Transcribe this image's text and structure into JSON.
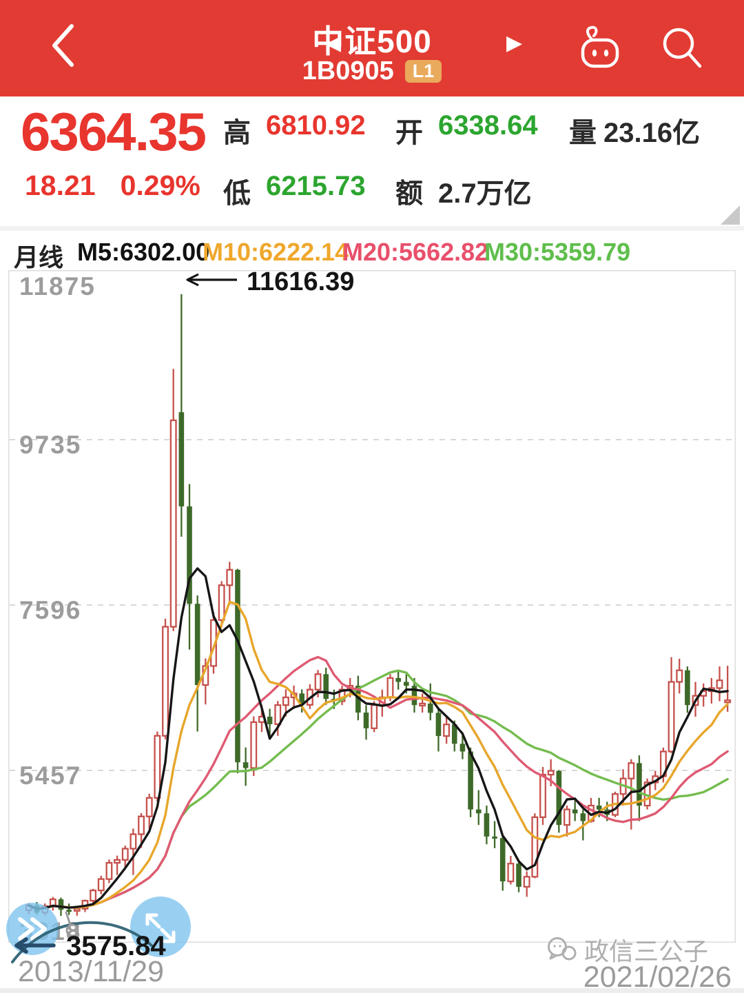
{
  "header": {
    "title": "中证500",
    "code": "1B0905",
    "badge": "L1"
  },
  "quote": {
    "price": "6364.35",
    "change": "18.21",
    "change_pct": "0.29%",
    "high_label": "高",
    "high": "6810.92",
    "open_label": "开",
    "open": "6338.64",
    "vol_label": "量",
    "vol": "23.16亿",
    "low_label": "低",
    "low": "6215.73",
    "amt_label": "额",
    "amt": "2.7万亿"
  },
  "legend": {
    "period": "月线",
    "m5": "M5:6302.00",
    "m10": "M10:6222.14",
    "m20": "M20:5662.82",
    "m30": "M30:5359.79"
  },
  "footer": {
    "start_date": "2013/11/29",
    "end_date": "2021/02/26",
    "watermark": "政信三公子"
  },
  "chart_data": {
    "type": "candlestick",
    "title": "中证500 monthly K-line",
    "x_range": [
      "2013/11/29",
      "2021/02/26"
    ],
    "y_axis_labels": [
      "11875",
      "9735",
      "7596",
      "5457",
      "3318"
    ],
    "y_gridline_values": [
      9735,
      7596,
      5457
    ],
    "max_annotation": "11616.39",
    "min_annotation": "3575.84",
    "ma_periods": [
      5,
      10,
      20,
      30
    ],
    "colors": {
      "candle_up": "#C5504B",
      "candle_down": "#3E6A29",
      "ma5": "#161616",
      "ma10": "#E7A62B",
      "ma20": "#DF5A72",
      "ma30": "#74BC4F",
      "grid": "#D8D8D8",
      "border": "#DCDCDC",
      "axis_text": "#9C9C9C",
      "annotation": "#141414",
      "hand_arrow": "#274B6B",
      "hand_swoosh": "#2F6375",
      "marker_gray": "#9B9B9B"
    },
    "candles": [
      [
        3650,
        3742,
        3596,
        3712
      ],
      [
        3712,
        3755,
        3590,
        3618
      ],
      [
        3618,
        3736,
        3582,
        3702
      ],
      [
        3702,
        3820,
        3645,
        3790
      ],
      [
        3790,
        3812,
        3575.84,
        3655
      ],
      [
        3655,
        3735,
        3588,
        3642
      ],
      [
        3642,
        3695,
        3578,
        3668
      ],
      [
        3668,
        3785,
        3625,
        3772
      ],
      [
        3772,
        3925,
        3705,
        3905
      ],
      [
        3905,
        4095,
        3855,
        4052
      ],
      [
        4052,
        4305,
        4000,
        4262
      ],
      [
        4262,
        4355,
        4105,
        4300
      ],
      [
        4300,
        4485,
        4205,
        4445
      ],
      [
        4445,
        4705,
        4105,
        4632
      ],
      [
        4632,
        4905,
        4455,
        4862
      ],
      [
        4862,
        5155,
        4705,
        5102
      ],
      [
        5102,
        5960,
        5055,
        5905
      ],
      [
        5905,
        7420,
        5860,
        7315
      ],
      [
        7315,
        10650,
        7260,
        9985
      ],
      [
        10090,
        11616.39,
        8480,
        8872
      ],
      [
        8872,
        9160,
        7020,
        7612
      ],
      [
        7612,
        7720,
        5960,
        6562
      ],
      [
        6562,
        6905,
        6310,
        6808
      ],
      [
        6808,
        7505,
        6708,
        7402
      ],
      [
        7402,
        7905,
        7305,
        7852
      ],
      [
        7852,
        8155,
        7605,
        8052
      ],
      [
        8052,
        8065,
        5420,
        5562
      ],
      [
        5562,
        5755,
        5258,
        5488
      ],
      [
        5488,
        6155,
        5385,
        6082
      ],
      [
        6082,
        6305,
        5955,
        6152
      ],
      [
        6152,
        6255,
        5905,
        6055
      ],
      [
        6055,
        6355,
        5905,
        6302
      ],
      [
        6302,
        6505,
        6155,
        6402
      ],
      [
        6402,
        6555,
        6252,
        6452
      ],
      [
        6452,
        6505,
        6205,
        6305
      ],
      [
        6305,
        6572,
        6252,
        6502
      ],
      [
        6502,
        6755,
        6402,
        6702
      ],
      [
        6702,
        6785,
        6305,
        6382
      ],
      [
        6382,
        6502,
        6252,
        6352
      ],
      [
        6352,
        6552,
        6302,
        6502
      ],
      [
        6502,
        6652,
        6402,
        6552
      ],
      [
        6552,
        6682,
        6105,
        6205
      ],
      [
        6205,
        6302,
        5855,
        6002
      ],
      [
        6002,
        6352,
        5952,
        6302
      ],
      [
        6302,
        6502,
        6152,
        6402
      ],
      [
        6402,
        6702,
        6352,
        6652
      ],
      [
        6652,
        6752,
        6502,
        6602
      ],
      [
        6602,
        6702,
        6452,
        6552
      ],
      [
        6552,
        6652,
        6205,
        6302
      ],
      [
        6302,
        6452,
        6205,
        6322
      ],
      [
        6322,
        6582,
        6105,
        6202
      ],
      [
        6202,
        6252,
        5702,
        5902
      ],
      [
        5902,
        6152,
        5802,
        6052
      ],
      [
        6052,
        6102,
        5702,
        5802
      ],
      [
        5802,
        5952,
        5602,
        5702
      ],
      [
        5702,
        5752,
        4852,
        4952
      ],
      [
        4952,
        5202,
        4752,
        4902
      ],
      [
        4902,
        5002,
        4502,
        4602
      ],
      [
        4602,
        4802,
        4452,
        4582
      ],
      [
        4582,
        4602,
        3902,
        4022
      ],
      [
        4022,
        4352,
        3982,
        4252
      ],
      [
        4252,
        4302,
        3882,
        3952
      ],
      [
        3952,
        4152,
        3822,
        4082
      ],
      [
        4082,
        4902,
        4062,
        4852
      ],
      [
        4852,
        5502,
        4752,
        5402
      ],
      [
        5402,
        5602,
        5252,
        5452
      ],
      [
        5452,
        5462,
        4652,
        4752
      ],
      [
        4752,
        5002,
        4602,
        4952
      ],
      [
        4952,
        5102,
        4802,
        4902
      ],
      [
        4902,
        4952,
        4552,
        4802
      ],
      [
        4802,
        5102,
        4782,
        5002
      ],
      [
        5002,
        5102,
        4852,
        4952
      ],
      [
        4952,
        5052,
        4802,
        4882
      ],
      [
        4882,
        5182,
        4852,
        5152
      ],
      [
        5152,
        5472,
        5002,
        5352
      ],
      [
        5352,
        5602,
        4692,
        5552
      ],
      [
        5552,
        5652,
        4802,
        5002
      ],
      [
        5002,
        5352,
        4952,
        5302
      ],
      [
        5302,
        5452,
        5202,
        5382
      ],
      [
        5382,
        5752,
        5302,
        5702
      ],
      [
        5702,
        6922,
        5682,
        6602
      ],
      [
        6602,
        6902,
        6452,
        6752
      ],
      [
        6752,
        6802,
        6202,
        6302
      ],
      [
        6302,
        6602,
        6152,
        6422
      ],
      [
        6422,
        6582,
        6282,
        6482
      ],
      [
        6482,
        6652,
        6322,
        6522
      ],
      [
        6522,
        6802,
        6352,
        6622
      ],
      [
        6338.64,
        6810.92,
        6215.73,
        6364.35
      ]
    ]
  }
}
